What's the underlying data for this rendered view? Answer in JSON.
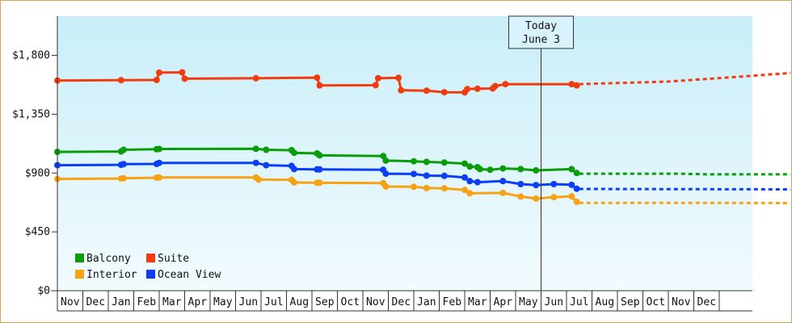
{
  "chart_data": {
    "type": "line",
    "title": "",
    "xlabel": "",
    "ylabel": "",
    "ylim": [
      0,
      2100
    ],
    "y_ticks": [
      {
        "value": 0,
        "label": "$0"
      },
      {
        "value": 450,
        "label": "$450"
      },
      {
        "value": 900,
        "label": "$900"
      },
      {
        "value": 1350,
        "label": "$1,350"
      },
      {
        "value": 1800,
        "label": "$1,800"
      }
    ],
    "x_categories": [
      "Nov",
      "Dec",
      "Jan",
      "Feb",
      "Mar",
      "Apr",
      "May",
      "Jun",
      "Jul",
      "Aug",
      "Sep",
      "Oct",
      "Nov",
      "Dec",
      "Jan",
      "Feb",
      "Mar",
      "Apr",
      "May",
      "Jun",
      "Jul",
      "Aug",
      "Sep",
      "Oct",
      "Nov",
      "Dec"
    ],
    "today_index": 19,
    "today_label": [
      "Today",
      "June 3"
    ],
    "background": {
      "top": "#c9eef8",
      "bottom": "#f2fbfe"
    },
    "grid": false,
    "legend_position": "bottom-left",
    "series": [
      {
        "name": "Suite",
        "color": "#f03c0f",
        "points": [
          [
            0,
            1608
          ],
          [
            2.5,
            1610
          ],
          [
            3.9,
            1612
          ],
          [
            4.0,
            1668
          ],
          [
            4.9,
            1670
          ],
          [
            5.0,
            1622
          ],
          [
            7.8,
            1625
          ],
          [
            10.2,
            1630
          ],
          [
            10.3,
            1570
          ],
          [
            12.5,
            1572
          ],
          [
            12.6,
            1625
          ],
          [
            13.4,
            1628
          ],
          [
            13.5,
            1533
          ],
          [
            14.5,
            1530
          ],
          [
            15.2,
            1518
          ],
          [
            16.0,
            1517
          ],
          [
            16.1,
            1542
          ],
          [
            16.5,
            1545
          ],
          [
            17.1,
            1547
          ],
          [
            17.2,
            1565
          ],
          [
            17.6,
            1580
          ],
          [
            20.2,
            1580
          ],
          [
            20.4,
            1570
          ]
        ],
        "forecast": [
          [
            20.5,
            1580
          ],
          [
            24.0,
            1600
          ],
          [
            27.0,
            1640
          ],
          [
            28.8,
            1665
          ]
        ]
      },
      {
        "name": "Balcony",
        "color": "#0a9d0a",
        "points": [
          [
            0,
            1062
          ],
          [
            2.5,
            1065
          ],
          [
            2.6,
            1078
          ],
          [
            3.9,
            1082
          ],
          [
            4.0,
            1084
          ],
          [
            7.8,
            1085
          ],
          [
            8.2,
            1078
          ],
          [
            9.2,
            1075
          ],
          [
            9.3,
            1055
          ],
          [
            10.2,
            1050
          ],
          [
            10.3,
            1035
          ],
          [
            12.8,
            1030
          ],
          [
            12.9,
            995
          ],
          [
            14.0,
            990
          ],
          [
            14.5,
            985
          ],
          [
            15.2,
            980
          ],
          [
            16.0,
            972
          ],
          [
            16.2,
            950
          ],
          [
            16.5,
            945
          ],
          [
            16.6,
            930
          ],
          [
            17.0,
            925
          ],
          [
            17.5,
            935
          ],
          [
            18.2,
            930
          ],
          [
            18.8,
            920
          ],
          [
            20.2,
            930
          ],
          [
            20.4,
            900
          ]
        ],
        "forecast": [
          [
            20.5,
            895
          ],
          [
            24.5,
            895
          ],
          [
            25.5,
            890
          ],
          [
            28.8,
            890
          ]
        ]
      },
      {
        "name": "Ocean View",
        "color": "#0c3ef5",
        "points": [
          [
            0,
            960
          ],
          [
            2.5,
            963
          ],
          [
            2.6,
            968
          ],
          [
            3.9,
            970
          ],
          [
            4.0,
            978
          ],
          [
            7.8,
            978
          ],
          [
            8.2,
            960
          ],
          [
            9.2,
            955
          ],
          [
            9.3,
            930
          ],
          [
            10.2,
            928
          ],
          [
            10.3,
            928
          ],
          [
            12.8,
            925
          ],
          [
            12.9,
            895
          ],
          [
            14.0,
            893
          ],
          [
            14.5,
            880
          ],
          [
            15.2,
            878
          ],
          [
            16.0,
            866
          ],
          [
            16.2,
            838
          ],
          [
            16.5,
            830
          ],
          [
            17.5,
            838
          ],
          [
            18.2,
            815
          ],
          [
            18.8,
            808
          ],
          [
            19.5,
            815
          ],
          [
            20.2,
            810
          ],
          [
            20.4,
            780
          ]
        ],
        "forecast": [
          [
            20.5,
            778
          ],
          [
            28.8,
            775
          ]
        ]
      },
      {
        "name": "Interior",
        "color": "#f7a114",
        "points": [
          [
            0,
            855
          ],
          [
            2.5,
            858
          ],
          [
            2.6,
            860
          ],
          [
            3.9,
            864
          ],
          [
            4.0,
            866
          ],
          [
            7.8,
            866
          ],
          [
            7.9,
            850
          ],
          [
            9.2,
            848
          ],
          [
            9.3,
            828
          ],
          [
            10.2,
            825
          ],
          [
            10.3,
            825
          ],
          [
            12.8,
            823
          ],
          [
            12.9,
            797
          ],
          [
            14.0,
            795
          ],
          [
            14.5,
            785
          ],
          [
            15.2,
            783
          ],
          [
            16.0,
            770
          ],
          [
            16.2,
            745
          ],
          [
            17.5,
            748
          ],
          [
            18.2,
            720
          ],
          [
            18.8,
            705
          ],
          [
            19.5,
            715
          ],
          [
            20.2,
            722
          ],
          [
            20.4,
            680
          ]
        ],
        "forecast": [
          [
            20.5,
            672
          ],
          [
            25.5,
            672
          ],
          [
            28.8,
            670
          ]
        ]
      }
    ]
  },
  "legend": [
    {
      "name": "Balcony",
      "color": "#0a9d0a"
    },
    {
      "name": "Suite",
      "color": "#f03c0f"
    },
    {
      "name": "Interior",
      "color": "#f7a114"
    },
    {
      "name": "Ocean View",
      "color": "#0c3ef5"
    }
  ]
}
